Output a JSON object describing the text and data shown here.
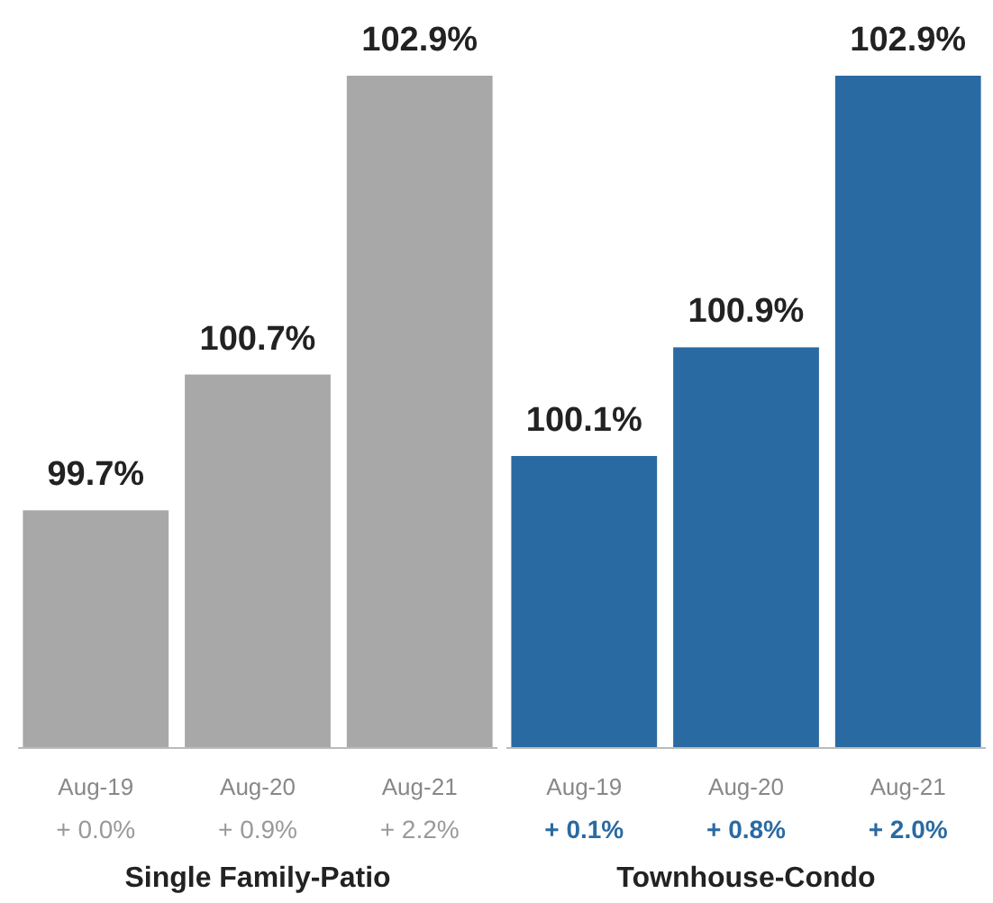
{
  "chart_data": [
    {
      "type": "bar",
      "categories": [
        "Aug-19",
        "Aug-20",
        "Aug-21"
      ],
      "values": [
        99.7,
        100.7,
        102.9
      ],
      "color": "#a8a8a8",
      "value_labels": [
        "99.7%",
        "100.7%",
        "102.9%"
      ],
      "xlabel": "Single Family-Patio",
      "ylim": [
        97.95,
        102.9
      ],
      "tick_labels": "x",
      "annotations": [
        "+ 0.0%",
        "+ 0.9%",
        "+ 2.2%"
      ]
    },
    {
      "type": "bar",
      "categories": [
        "Aug-19",
        "Aug-20",
        "Aug-21"
      ],
      "values": [
        100.1,
        100.9,
        102.9
      ],
      "color": "#2a6aa2",
      "value_labels": [
        "100.1%",
        "100.9%",
        "102.9%"
      ],
      "xlabel": "Townhouse-Condo",
      "ylim": [
        97.95,
        102.9
      ],
      "tick_labels": "x",
      "annotations": [
        "+ 0.1%",
        "+ 0.8%",
        "+ 2.0%"
      ]
    }
  ]
}
